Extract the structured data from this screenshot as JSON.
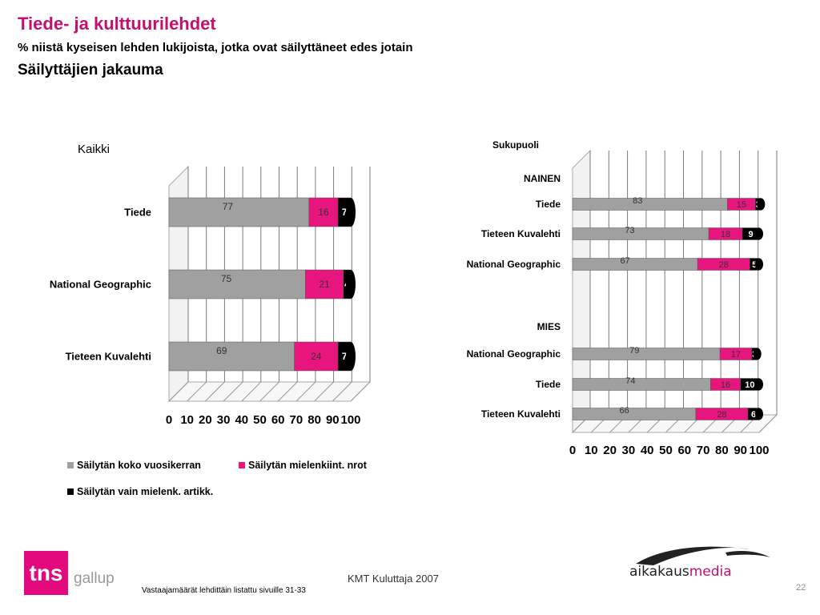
{
  "header": {
    "title": "Tiede- ja kulttuurilehdet",
    "subtitle": "% niistä kyseisen lehden lukijoista, jotka ovat säilyttäneet edes jotain",
    "subtitle2": "Säilyttäjien jakauma"
  },
  "colors": {
    "series1": "#a0a0a0",
    "series2": "#e8157f",
    "series3": "#000000",
    "brand": "#c2106f"
  },
  "chart_data": [
    {
      "type": "bar",
      "orientation": "horizontal",
      "stacked": true,
      "title": "Kaikki",
      "categories": [
        "Tiede",
        "National Geographic",
        "Tieteen Kuvalehti"
      ],
      "series": [
        {
          "name": "Säilytän koko vuosikerran",
          "values": [
            77,
            75,
            69
          ]
        },
        {
          "name": "Säilytän mielenkiint. nrot",
          "values": [
            16,
            21,
            24
          ]
        },
        {
          "name": "Säilytän vain mielenk. artikk.",
          "values": [
            7,
            4,
            7
          ]
        }
      ],
      "xlim": [
        0,
        100
      ],
      "xticks": [
        "0",
        "10",
        "20",
        "30",
        "40",
        "50",
        "60",
        "70",
        "80",
        "90",
        "100"
      ],
      "grid": true,
      "legend": "bottom"
    },
    {
      "type": "bar",
      "orientation": "horizontal",
      "stacked": true,
      "title": "Sukupuoli",
      "groups": [
        {
          "name": "NAINEN",
          "categories": [
            "Tiede",
            "Tieteen Kuvalehti",
            "National Geographic"
          ]
        },
        {
          "name": "MIES",
          "categories": [
            "National Geographic",
            "Tiede",
            "Tieteen Kuvalehti"
          ]
        }
      ],
      "categories": [
        "Tiede",
        "Tieteen Kuvalehti",
        "National Geographic",
        "National Geographic",
        "Tiede",
        "Tieteen Kuvalehti"
      ],
      "series": [
        {
          "name": "Säilytän koko vuosikerran",
          "values": [
            83,
            73,
            67,
            79,
            74,
            66
          ]
        },
        {
          "name": "Säilytän mielenkiint. nrot",
          "values": [
            15,
            18,
            28,
            17,
            16,
            28
          ]
        },
        {
          "name": "Säilytän vain mielenk. artikk.",
          "values": [
            3,
            9,
            5,
            3,
            10,
            6
          ]
        }
      ],
      "xlim": [
        0,
        100
      ],
      "xticks": [
        "0",
        "10",
        "20",
        "30",
        "40",
        "50",
        "60",
        "70",
        "80",
        "90",
        "100"
      ],
      "grid": true
    }
  ],
  "legend": {
    "items": [
      "Säilytän koko vuosikerran",
      "Säilytän mielenkiint. nrot",
      "Säilytän vain mielenk. artikk."
    ]
  },
  "footer": {
    "note": "Vastaajamäärät lehdittäin listattu sivuille 31-33",
    "source": "KMT Kuluttaja 2007",
    "page": "22",
    "logo_tns": "tns",
    "logo_gallup": "gallup",
    "logo_aik_a": "aikakaus",
    "logo_aik_m": "media"
  }
}
